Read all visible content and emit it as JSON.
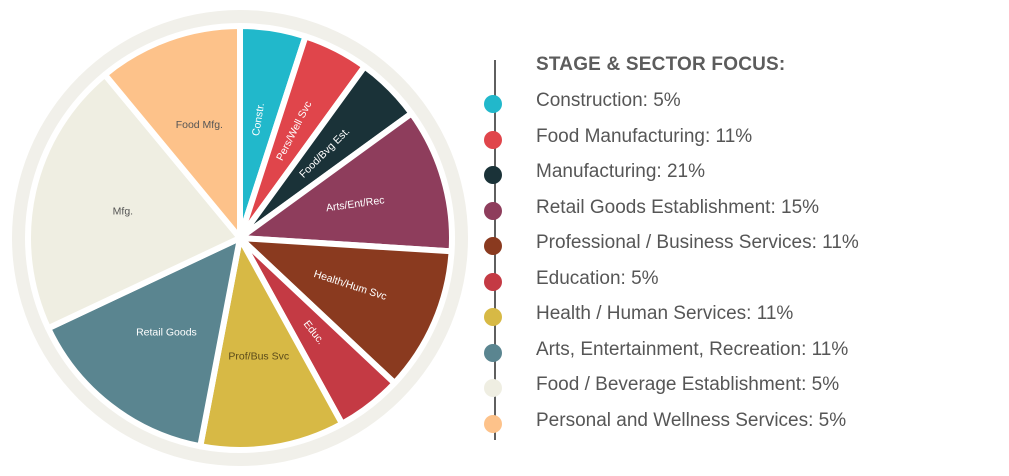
{
  "chart_data": {
    "type": "pie",
    "title": "STAGE & SECTOR FOCUS:",
    "slices": [
      {
        "label": "Constr.",
        "value": 5,
        "color": "#21b8cb",
        "text_color": "#ffffff"
      },
      {
        "label": "Pers/Well Svc",
        "value": 5,
        "color": "#e0454b",
        "text_color": "#ffffff"
      },
      {
        "label": "Food/Bvg Est.",
        "value": 5,
        "color": "#1a3238",
        "text_color": "#ffffff"
      },
      {
        "label": "Arts/Ent/Rec",
        "value": 11,
        "color": "#8e3d5c",
        "text_color": "#ffffff"
      },
      {
        "label": "Health/Hum Svc",
        "value": 11,
        "color": "#8a3a1f",
        "text_color": "#ffffff"
      },
      {
        "label": "Educ.",
        "value": 5,
        "color": "#c43a44",
        "text_color": "#ffffff"
      },
      {
        "label": "Prof/Bus Svc",
        "value": 11,
        "color": "#d7b945",
        "text_color": "#5a4a1a"
      },
      {
        "label": "Retail Goods",
        "value": 15,
        "color": "#5a8590",
        "text_color": "#ffffff"
      },
      {
        "label": "Mfg.",
        "value": 21,
        "color": "#efeee2",
        "text_color": "#555555"
      },
      {
        "label": "Food Mfg.",
        "value": 11,
        "color": "#fdc28a",
        "text_color": "#555555"
      }
    ],
    "legend": [
      {
        "text": "Construction: 5%",
        "color": "#21b8cb"
      },
      {
        "text": "Food Manufacturing: 11%",
        "color": "#e0454b"
      },
      {
        "text": "Manufacturing: 21%",
        "color": "#1a3238"
      },
      {
        "text": "Retail Goods Establishment: 15%",
        "color": "#8e3d5c"
      },
      {
        "text": "Professional / Business Services: 11%",
        "color": "#8a3a1f"
      },
      {
        "text": "Education: 5%",
        "color": "#c43a44"
      },
      {
        "text": "Health / Human Services: 11%",
        "color": "#d7b945"
      },
      {
        "text": "Arts, Entertainment, Recreation: 11%",
        "color": "#5a8590"
      },
      {
        "text": "Food / Beverage Establishment: 5%",
        "color": "#efeee2"
      },
      {
        "text": "Personal and Wellness Services: 5%",
        "color": "#fdc28a"
      }
    ],
    "legend_placement": "right",
    "outer_ring_color": "#f1f0ea"
  }
}
